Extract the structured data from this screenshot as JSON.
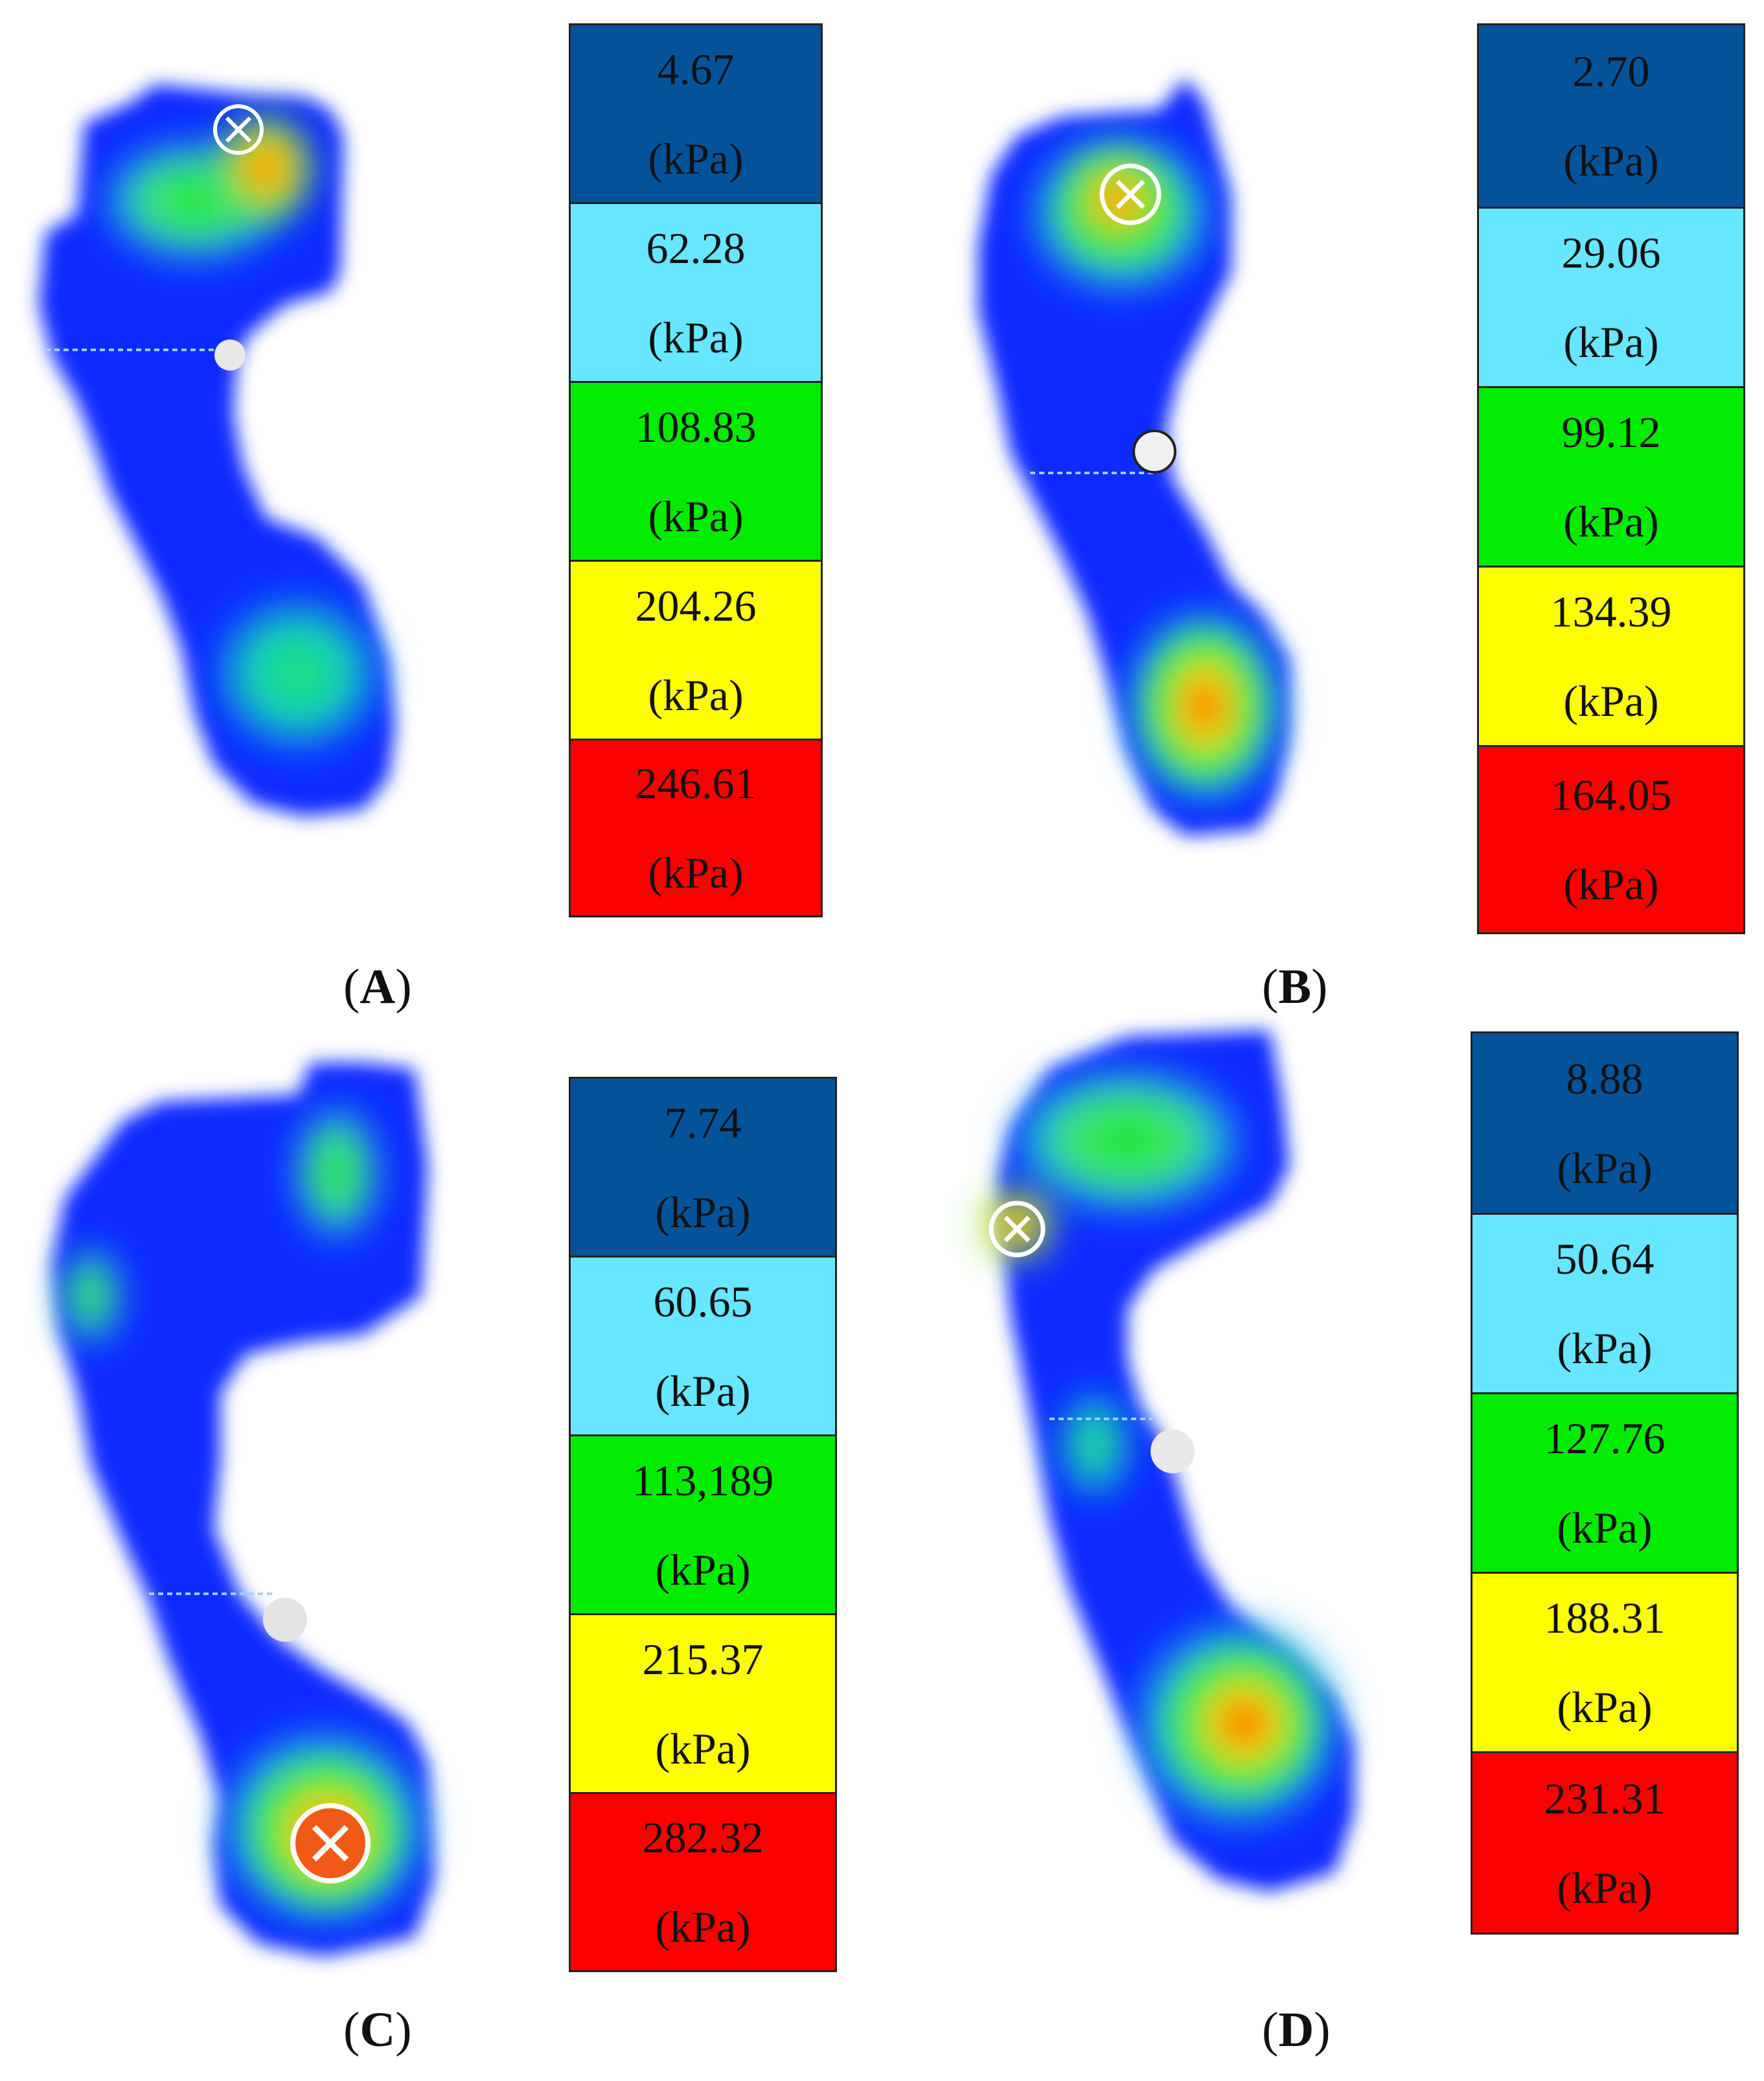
{
  "panels": [
    {
      "label": "A",
      "values": [
        "4.67",
        "62.28",
        "108.83",
        "204.26",
        "246.61"
      ],
      "unit": "(kPa)"
    },
    {
      "label": "B",
      "values": [
        "2.70",
        "29.06",
        "99.12",
        "134.39",
        "164.05"
      ],
      "unit": "(kPa)"
    },
    {
      "label": "C",
      "values": [
        "7.74",
        "60.65",
        "113,189",
        "215.37",
        "282.32"
      ],
      "unit": "(kPa)"
    },
    {
      "label": "D",
      "values": [
        "8.88",
        "50.64",
        "127.76",
        "188.31",
        "231.31"
      ],
      "unit": "(kPa)"
    }
  ],
  "legend_colors": [
    "#03539a",
    "#67e6ff",
    "#01ec00",
    "#fdff00",
    "#fb0000"
  ],
  "paren_open": "(",
  "paren_close": ")"
}
